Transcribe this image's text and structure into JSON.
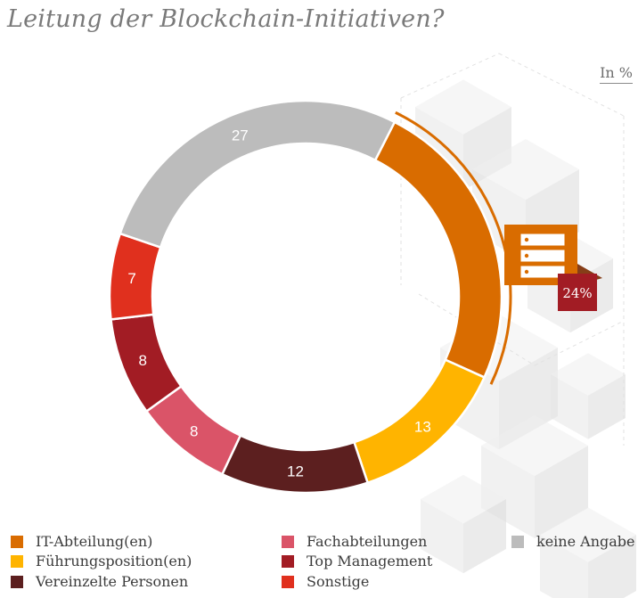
{
  "title": "Leitung der Blockchain-Initiativen?",
  "unit_label": "In %",
  "chart_data": {
    "type": "pie",
    "variant": "donut",
    "slices": [
      {
        "label": "IT-Abteilung(en)",
        "value": 24,
        "color": "#d96c00",
        "show_value": false
      },
      {
        "label": "Führungsposition(en)",
        "value": 13,
        "color": "#ffb400",
        "show_value": true
      },
      {
        "label": "Vereinzelte Personen",
        "value": 12,
        "color": "#5c1f1f",
        "show_value": true
      },
      {
        "label": "Fachabteilungen",
        "value": 8,
        "color": "#da5468",
        "show_value": true
      },
      {
        "label": "Top Management",
        "value": 8,
        "color": "#a21c24",
        "show_value": true
      },
      {
        "label": "Sonstige",
        "value": 7,
        "color": "#e0301e",
        "show_value": true
      },
      {
        "label": "keine Angabe",
        "value": 27,
        "color": "#bcbcbc",
        "show_value": true
      }
    ],
    "highlight": {
      "slice": "IT-Abteilung(en)",
      "text": "24%",
      "icon": "server-rack-icon",
      "accent": "#d96c00",
      "badge_color": "#a21c24"
    },
    "legend_columns": [
      [
        "IT-Abteilung(en)",
        "Führungsposition(en)",
        "Vereinzelte Personen"
      ],
      [
        "Fachabteilungen",
        "Top Management",
        "Sonstige"
      ],
      [
        "keine Angabe"
      ]
    ]
  }
}
